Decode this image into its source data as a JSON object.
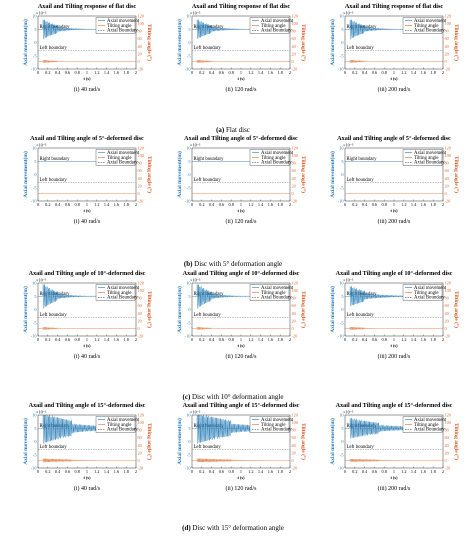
{
  "colors": {
    "axial": "#1f77b4",
    "tilt": "#e06a2a",
    "boundary": "#555555",
    "axis": "#000000"
  },
  "panel_common": {
    "xlabel": "t (s)",
    "ylabel_left": "Axial movement(m)",
    "ylabel_right": "Tilting angle (°)",
    "left_exponent": "×10⁻³",
    "x_ticks": [
      "0",
      "0.2",
      "0.4",
      "0.6",
      "0.8",
      "1",
      "1.2",
      "1.4",
      "1.6",
      "1.8",
      "2"
    ],
    "left_ticks": [
      "-10",
      "-5",
      "0",
      "5",
      "10"
    ],
    "right_ticks": [
      "-20",
      "0",
      "20",
      "40",
      "60",
      "80",
      "100",
      "120"
    ],
    "legend": [
      "Axial movement",
      "Tilting angle",
      "Axial Boundary"
    ],
    "right_boundary_label": "Right boundary",
    "left_boundary_label": "Left boundary",
    "speed_labels": [
      "(i) 40 rad/s",
      "(ii) 120 rad/s",
      "(iii) 200 rad/s"
    ]
  },
  "groups": [
    {
      "title": "Axail and Tilting response of flat disc",
      "caption_tag": "(a)",
      "caption_text": "Flat disc"
    },
    {
      "title": "Axail and Tilting angle of 5°-deformed disc",
      "caption_tag": "(b)",
      "caption_text": "Disc with 5° deformation angle"
    },
    {
      "title": "Axail and Tilting angle of 10°-deformed disc",
      "caption_tag": "(c)",
      "caption_text": "Disc with 10° deformation angle"
    },
    {
      "title": "Axail and Tilting angle of 15°-deformed disc",
      "caption_tag": "(d)",
      "caption_text": "Disc with 15° deformation angle"
    }
  ],
  "chart_data": {
    "type": "line",
    "x_range": [
      0,
      2
    ],
    "left_axis": {
      "label": "Axial movement(m)",
      "unit_scale": "×10⁻³",
      "range": [
        -10,
        10
      ]
    },
    "right_axis": {
      "label": "Tilting angle (°)",
      "range": [
        -20,
        120
      ]
    },
    "axial_boundary": {
      "right": 5,
      "left": -3
    },
    "series_names": [
      "Axial movement",
      "Tilting angle",
      "Axial Boundary"
    ],
    "panels": [
      {
        "group": "(a)",
        "speed": "40 rad/s",
        "settle_time": 0.3,
        "axial_amp": 4,
        "tilt_amp": 4,
        "decay": 3.2
      },
      {
        "group": "(a)",
        "speed": "120 rad/s",
        "settle_time": 0.3,
        "axial_amp": 4,
        "tilt_amp": 4,
        "decay": 3.2
      },
      {
        "group": "(a)",
        "speed": "200 rad/s",
        "settle_time": 0.3,
        "axial_amp": 4,
        "tilt_amp": 4,
        "decay": 3.2
      },
      {
        "group": "(b)",
        "speed": "40 rad/s",
        "settle_time": 0.12,
        "axial_amp": 1,
        "tilt_amp": 2,
        "decay": 50
      },
      {
        "group": "(b)",
        "speed": "120 rad/s",
        "settle_time": 0.12,
        "axial_amp": 1,
        "tilt_amp": 2,
        "decay": 50
      },
      {
        "group": "(b)",
        "speed": "200 rad/s",
        "settle_time": 0.12,
        "axial_amp": 1,
        "tilt_amp": 2,
        "decay": 50
      },
      {
        "group": "(c)",
        "speed": "40 rad/s",
        "settle_time": 0.3,
        "axial_amp": 5,
        "tilt_amp": 4,
        "decay": 3.5
      },
      {
        "group": "(c)",
        "speed": "120 rad/s",
        "settle_time": 0.3,
        "axial_amp": 5,
        "tilt_amp": 4,
        "decay": 3.5
      },
      {
        "group": "(c)",
        "speed": "200 rad/s",
        "settle_time": 0.3,
        "axial_amp": 4,
        "tilt_amp": 4,
        "decay": 2.2
      },
      {
        "group": "(d)",
        "speed": "40 rad/s",
        "settle_time": 0.6,
        "axial_amp": 6,
        "tilt_amp": 5,
        "decay": 1.2
      },
      {
        "group": "(d)",
        "speed": "120 rad/s",
        "settle_time": 0.7,
        "axial_amp": 6,
        "tilt_amp": 5,
        "decay": 1.0
      },
      {
        "group": "(d)",
        "speed": "200 rad/s",
        "settle_time": 0.6,
        "axial_amp": 4,
        "tilt_amp": 4,
        "decay": 1.1
      }
    ]
  }
}
